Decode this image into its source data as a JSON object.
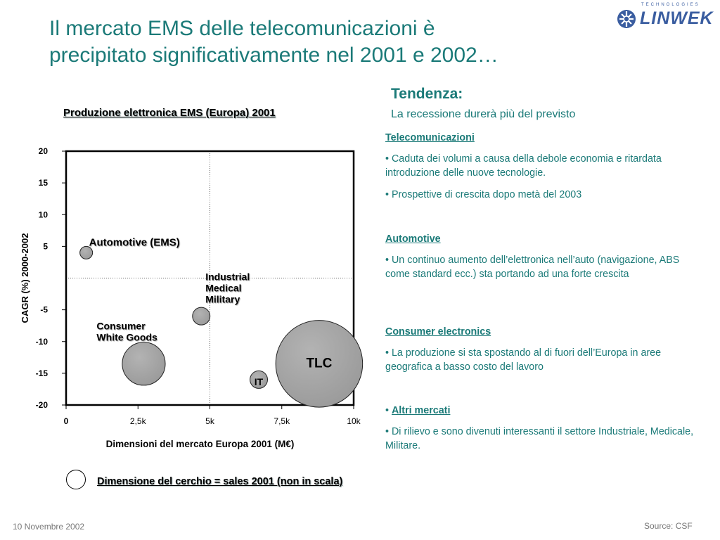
{
  "slide": {
    "title_line1": "Il mercato EMS delle telecomunicazioni è",
    "title_line2": "precipitato significativamente nel 2001 e 2002…",
    "logo_text": "LINWEK",
    "logo_small": "TECHNOLOGIES",
    "date": "10 Novembre 2002",
    "source": "Source: CSF"
  },
  "trend": {
    "heading": "Tendenza:",
    "subheading": "La recessione durerà più del previsto",
    "sections": [
      {
        "header": "Telecomunicazioni",
        "bullets": [
          "• Caduta dei volumi a causa della debole economia e ritardata introduzione delle nuove tecnologie.",
          "• Prospettive di crescita dopo metà del 2003"
        ]
      },
      {
        "header": "Automotive",
        "bullets": [
          "• Un continuo aumento dell’elettronica nell’auto (navigazione, ABS come standard ecc.) sta portando ad una forte crescita"
        ]
      },
      {
        "header": "Consumer electronics",
        "bullets": [
          "• La produzione si sta spostando al di fuori dell’Europa in aree geografica a basso costo del lavoro"
        ]
      },
      {
        "header": "Altri mercati",
        "bullet_prefix": "• ",
        "bullets": [
          "• Di rilievo e sono divenuti interessanti il settore Industriale, Medicale, Militare."
        ]
      }
    ]
  },
  "legend": {
    "text": "Dimensione del cerchio = sales 2001 (non in scala)"
  },
  "chart_data": {
    "type": "scatter",
    "title": "Produzione elettronica  EMS (Europa) 2001",
    "xlabel": "Dimensioni del mercato Europa 2001 (M€)",
    "ylabel": "CAGR (%) 2000-2002",
    "xlim": [
      0,
      10000
    ],
    "ylim": [
      -20,
      20
    ],
    "x_ticks": [
      {
        "value": 0,
        "label": "0"
      },
      {
        "value": 2500,
        "label": "2,5k"
      },
      {
        "value": 5000,
        "label": "5k"
      },
      {
        "value": 7500,
        "label": "7,5k"
      },
      {
        "value": 10000,
        "label": "10k"
      }
    ],
    "y_ticks": [
      {
        "value": 20,
        "label": "20"
      },
      {
        "value": 15,
        "label": "15"
      },
      {
        "value": 10,
        "label": "10"
      },
      {
        "value": 5,
        "label": "5"
      },
      {
        "value": -5,
        "label": "-5"
      },
      {
        "value": -10,
        "label": "-10"
      },
      {
        "value": -15,
        "label": "-15"
      },
      {
        "value": -20,
        "label": "-20"
      }
    ],
    "reference_lines": {
      "x": 5000,
      "y": 0
    },
    "bubbles": [
      {
        "label_lines": [
          "Automotive (EMS)"
        ],
        "x": 700,
        "y": 4,
        "size": 1
      },
      {
        "label_lines": [
          "Industrial",
          "Medical",
          "Military"
        ],
        "x": 4700,
        "y": -6,
        "size": 2
      },
      {
        "label_lines": [
          "Consumer",
          "White Goods"
        ],
        "x": 2700,
        "y": -13.5,
        "size": 5
      },
      {
        "label_lines": [
          "IT"
        ],
        "x": 6700,
        "y": -16,
        "size": 2
      },
      {
        "label_lines": [
          "TLC"
        ],
        "x": 8800,
        "y": -13.5,
        "size": 10
      }
    ],
    "grid": false
  }
}
